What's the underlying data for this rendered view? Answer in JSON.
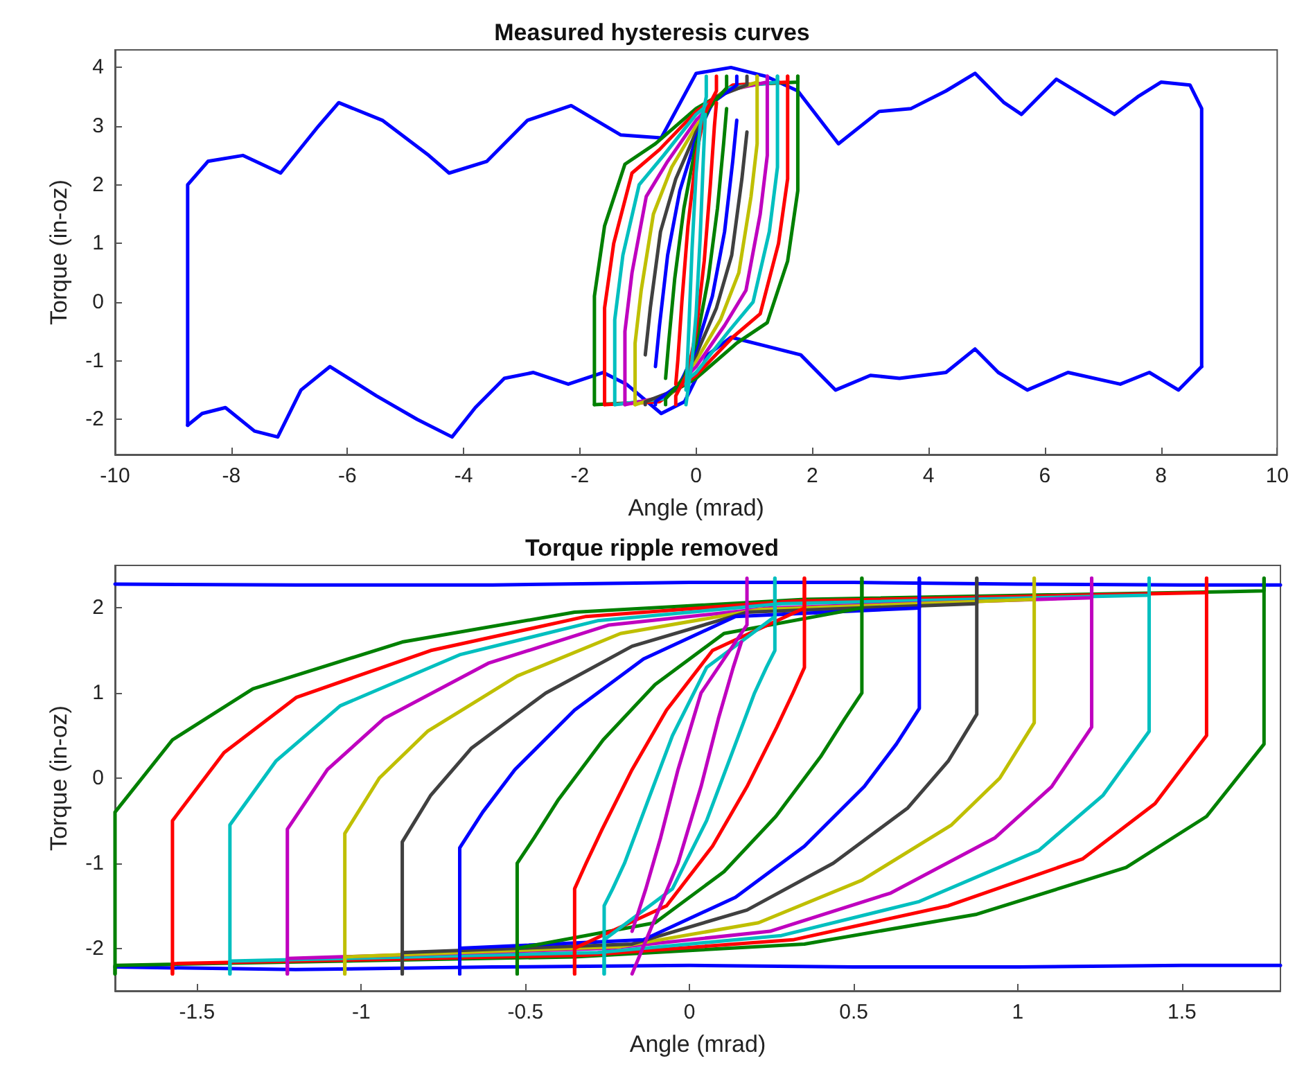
{
  "chart_data": [
    {
      "type": "line",
      "title": "Measured hysteresis curves",
      "xlabel": "Angle (mrad)",
      "ylabel": "Torque (in-oz)",
      "xlim": [
        -10,
        10
      ],
      "xticks": [
        -10,
        -8,
        -6,
        -4,
        -2,
        0,
        2,
        4,
        6,
        8,
        10
      ],
      "ylim": [
        -2.6,
        4.3
      ],
      "yticks": [
        -2,
        -1,
        0,
        1,
        2,
        3,
        4
      ],
      "marker": "none",
      "line_style": "solid",
      "series": [
        {
          "color": "#0000ff",
          "x": [
            -8.75,
            -8.75,
            -8.4,
            -7.8,
            -7.15,
            -6.5,
            -6.15,
            -5.4,
            -4.6,
            -4.25,
            -3.6,
            -2.9,
            -2.15,
            -1.3,
            -0.6,
            0,
            0.6,
            1.2,
            1.75,
            2.45,
            3.15,
            3.7,
            4.3,
            4.8,
            5.3,
            5.6,
            6.2,
            6.7,
            7.2,
            7.6,
            8.0,
            8.5,
            8.7,
            8.7
          ],
          "values": [
            -2.1,
            2.0,
            2.4,
            2.5,
            2.2,
            3.0,
            3.4,
            3.1,
            2.5,
            2.2,
            2.4,
            3.1,
            3.35,
            2.85,
            2.8,
            3.9,
            4.0,
            3.85,
            3.6,
            2.7,
            3.25,
            3.3,
            3.6,
            3.9,
            3.4,
            3.2,
            3.8,
            3.5,
            3.2,
            3.5,
            3.75,
            3.7,
            3.3,
            -1.1
          ]
        },
        {
          "color": "#0000ff",
          "x": [
            -8.75,
            -8.5,
            -8.1,
            -7.6,
            -7.2,
            -6.8,
            -6.3,
            -5.5,
            -4.8,
            -4.2,
            -3.8,
            -3.3,
            -2.8,
            -2.2,
            -1.6,
            -1.2,
            -0.6,
            -0.2,
            0.2,
            0.6,
            1.2,
            1.8,
            2.4,
            3.0,
            3.5,
            4.3,
            4.8,
            5.2,
            5.7,
            6.4,
            7.3,
            7.8,
            8.3,
            8.7
          ],
          "values": [
            -2.1,
            -1.9,
            -1.8,
            -2.2,
            -2.3,
            -1.5,
            -1.1,
            -1.6,
            -2.0,
            -2.3,
            -1.8,
            -1.3,
            -1.2,
            -1.4,
            -1.2,
            -1.4,
            -1.9,
            -1.7,
            -0.9,
            -0.6,
            -0.75,
            -0.9,
            -1.5,
            -1.25,
            -1.3,
            -1.2,
            -0.8,
            -1.2,
            -1.5,
            -1.2,
            -1.4,
            -1.2,
            -1.5,
            -1.1
          ]
        },
        {
          "color": "#008000",
          "x": [
            -1.75,
            -1.75,
            -1.575,
            -1.225,
            -0.7,
            0,
            0.7,
            1.75,
            1.75
          ],
          "values": [
            -1.75,
            0.1,
            1.3,
            2.35,
            2.7,
            3.3,
            3.7,
            3.75,
            3.85
          ]
        },
        {
          "color": "#008000",
          "x": [
            -1.75,
            -0.7,
            0,
            0.7,
            1.225,
            1.575,
            1.75,
            1.75
          ],
          "values": [
            -1.75,
            -1.7,
            -1.3,
            -0.7,
            -0.35,
            0.7,
            1.9,
            3.85
          ]
        },
        {
          "color": "#ff0000",
          "x": [
            -1.575,
            -1.575,
            -1.418,
            -1.103,
            -0.63,
            0,
            0.63,
            1.575,
            1.575
          ],
          "values": [
            -1.75,
            -0.1,
            1.0,
            2.2,
            2.6,
            3.25,
            3.7,
            3.75,
            3.85
          ]
        },
        {
          "color": "#ff0000",
          "x": [
            -1.575,
            -0.63,
            0,
            0.63,
            1.103,
            1.418,
            1.575,
            1.575
          ],
          "values": [
            -1.75,
            -1.7,
            -1.25,
            -0.6,
            -0.2,
            1.0,
            2.1,
            3.85
          ]
        },
        {
          "color": "#00bfbf",
          "x": [
            -1.4,
            -1.4,
            -1.26,
            -0.98,
            -0.56,
            0,
            0.56,
            1.4,
            1.4
          ],
          "values": [
            -1.75,
            -0.3,
            0.8,
            2.0,
            2.5,
            3.2,
            3.65,
            3.75,
            3.85
          ]
        },
        {
          "color": "#00bfbf",
          "x": [
            -1.4,
            -0.56,
            0,
            0.56,
            0.98,
            1.26,
            1.4,
            1.4
          ],
          "values": [
            -1.75,
            -1.65,
            -1.2,
            -0.5,
            0,
            1.2,
            2.3,
            3.85
          ]
        },
        {
          "color": "#bf00bf",
          "x": [
            -1.225,
            -1.225,
            -1.103,
            -0.858,
            -0.49,
            0,
            0.49,
            1.225,
            1.225
          ],
          "values": [
            -1.75,
            -0.5,
            0.5,
            1.8,
            2.4,
            3.1,
            3.6,
            3.75,
            3.85
          ]
        },
        {
          "color": "#bf00bf",
          "x": [
            -1.225,
            -0.49,
            0,
            0.49,
            0.858,
            1.103,
            1.225,
            1.225
          ],
          "values": [
            -1.75,
            -1.6,
            -1.1,
            -0.4,
            0.2,
            1.5,
            2.5,
            3.85
          ]
        },
        {
          "color": "#bfbf00",
          "x": [
            -1.05,
            -1.05,
            -0.945,
            -0.735,
            -0.42,
            0,
            0.42,
            1.05,
            1.05
          ],
          "values": [
            -1.75,
            -0.7,
            0.2,
            1.5,
            2.3,
            3.0,
            3.55,
            3.75,
            3.85
          ]
        },
        {
          "color": "#bfbf00",
          "x": [
            -1.05,
            -0.42,
            0,
            0.42,
            0.735,
            0.945,
            1.05,
            1.05
          ],
          "values": [
            -1.75,
            -1.55,
            -1.0,
            -0.3,
            0.5,
            1.8,
            2.7,
            3.85
          ]
        },
        {
          "color": "#404040",
          "x": [
            -0.875,
            -0.788,
            -0.613,
            -0.35,
            0,
            0.35,
            0.875,
            0.875
          ],
          "values": [
            -0.9,
            -0.1,
            1.2,
            2.1,
            2.9,
            3.5,
            3.7,
            3.85
          ]
        },
        {
          "color": "#404040",
          "x": [
            -0.875,
            -0.875,
            -0.35,
            0,
            0.35,
            0.613,
            0.788,
            0.875
          ],
          "values": [
            -1.75,
            -1.7,
            -1.5,
            -0.9,
            -0.1,
            0.8,
            2.1,
            2.9
          ]
        },
        {
          "color": "#0000ff",
          "x": [
            -0.7,
            -0.63,
            -0.49,
            -0.28,
            0,
            0.28,
            0.7,
            0.7
          ],
          "values": [
            -1.1,
            -0.4,
            0.8,
            1.9,
            2.8,
            3.4,
            3.7,
            3.85
          ]
        },
        {
          "color": "#0000ff",
          "x": [
            -0.7,
            -0.7,
            -0.28,
            0,
            0.28,
            0.49,
            0.63,
            0.7
          ],
          "values": [
            -1.75,
            -1.7,
            -1.4,
            -0.8,
            0.1,
            1.2,
            2.4,
            3.1
          ]
        },
        {
          "color": "#008000",
          "x": [
            -0.525,
            -0.473,
            -0.368,
            -0.21,
            0,
            0.21,
            0.525,
            0.525
          ],
          "values": [
            -1.3,
            -0.7,
            0.4,
            1.6,
            2.7,
            3.3,
            3.65,
            3.85
          ]
        },
        {
          "color": "#008000",
          "x": [
            -0.525,
            -0.525,
            -0.21,
            0,
            0.21,
            0.368,
            0.473,
            0.525
          ],
          "values": [
            -1.75,
            -1.65,
            -1.3,
            -0.7,
            0.4,
            1.6,
            2.7,
            3.3
          ]
        },
        {
          "color": "#ff0000",
          "x": [
            -0.35,
            -0.315,
            -0.245,
            -0.14,
            0,
            0.14,
            0.35,
            0.35
          ],
          "values": [
            -1.4,
            -1.0,
            0.0,
            1.3,
            2.5,
            3.2,
            3.6,
            3.85
          ]
        },
        {
          "color": "#ff0000",
          "x": [
            -0.35,
            -0.35,
            -0.14,
            0,
            0.14,
            0.245,
            0.315,
            0.35
          ],
          "values": [
            -1.75,
            -1.6,
            -1.2,
            -0.5,
            0.7,
            2.0,
            3.0,
            3.4
          ]
        },
        {
          "color": "#00bfbf",
          "x": [
            -0.175,
            -0.158,
            -0.123,
            -0.07,
            0,
            0.07,
            0.175,
            0.175
          ],
          "values": [
            -1.5,
            -1.2,
            -0.4,
            0.9,
            2.2,
            3.0,
            3.5,
            3.85
          ]
        },
        {
          "color": "#00bfbf",
          "x": [
            -0.175,
            -0.07,
            0,
            0.07,
            0.123,
            0.158
          ],
          "values": [
            -1.75,
            -1.0,
            -0.2,
            1.1,
            2.4,
            3.2
          ]
        }
      ]
    },
    {
      "type": "line",
      "title": "Torque ripple removed",
      "xlabel": "Angle (mrad)",
      "ylabel": "Torque (in-oz)",
      "xlim": [
        -1.75,
        1.8
      ],
      "xticks": [
        -1.5,
        -1,
        -0.5,
        0,
        0.5,
        1,
        1.5
      ],
      "ylim": [
        -2.5,
        2.5
      ],
      "yticks": [
        -2,
        -1,
        0,
        1,
        2
      ],
      "marker": "none",
      "line_style": "solid",
      "series": [
        {
          "color": "#0000ff",
          "x": [
            -1.75,
            -1.2,
            -0.6,
            0,
            0.5,
            1.0,
            1.5,
            1.8
          ],
          "values": [
            2.28,
            2.27,
            2.27,
            2.3,
            2.3,
            2.28,
            2.27,
            2.27
          ]
        },
        {
          "color": "#0000ff",
          "x": [
            -1.75,
            -1.2,
            -0.6,
            0,
            0.5,
            1.0,
            1.5,
            1.8
          ],
          "values": [
            -2.22,
            -2.25,
            -2.22,
            -2.2,
            -2.22,
            -2.22,
            -2.2,
            -2.2
          ]
        },
        {
          "color": "#008000",
          "x": [
            -1.75,
            -1.75,
            -1.575,
            -1.33,
            -0.875,
            -0.35,
            0.35,
            1.75,
            1.75
          ],
          "values": [
            -2.3,
            -0.4,
            0.45,
            1.05,
            1.6,
            1.95,
            2.1,
            2.2,
            2.35
          ]
        },
        {
          "color": "#008000",
          "x": [
            -1.75,
            -1.75,
            -0.35,
            0.35,
            0.875,
            1.33,
            1.575,
            1.75,
            1.75
          ],
          "values": [
            -2.3,
            -2.2,
            -2.1,
            -1.95,
            -1.6,
            -1.05,
            -0.45,
            0.4,
            2.35
          ]
        },
        {
          "color": "#ff0000",
          "x": [
            -1.575,
            -1.575,
            -1.418,
            -1.197,
            -0.788,
            -0.315,
            0.315,
            1.575,
            1.575
          ],
          "values": [
            -2.3,
            -0.5,
            0.3,
            0.95,
            1.5,
            1.9,
            2.08,
            2.18,
            2.35
          ]
        },
        {
          "color": "#ff0000",
          "x": [
            -1.575,
            -1.575,
            -0.315,
            0.315,
            0.788,
            1.197,
            1.418,
            1.575,
            1.575
          ],
          "values": [
            -2.3,
            -2.18,
            -2.08,
            -1.9,
            -1.5,
            -0.95,
            -0.3,
            0.5,
            2.35
          ]
        },
        {
          "color": "#00bfbf",
          "x": [
            -1.4,
            -1.4,
            -1.26,
            -1.064,
            -0.7,
            -0.28,
            0.28,
            1.4,
            1.4
          ],
          "values": [
            -2.3,
            -0.55,
            0.2,
            0.85,
            1.45,
            1.85,
            2.05,
            2.15,
            2.35
          ]
        },
        {
          "color": "#00bfbf",
          "x": [
            -1.4,
            -1.4,
            -0.28,
            0.28,
            0.7,
            1.064,
            1.26,
            1.4,
            1.4
          ],
          "values": [
            -2.3,
            -2.15,
            -2.05,
            -1.85,
            -1.45,
            -0.85,
            -0.2,
            0.55,
            2.35
          ]
        },
        {
          "color": "#bf00bf",
          "x": [
            -1.225,
            -1.225,
            -1.103,
            -0.931,
            -0.613,
            -0.245,
            0.245,
            1.225,
            1.225
          ],
          "values": [
            -2.3,
            -0.6,
            0.1,
            0.7,
            1.35,
            1.8,
            2.0,
            2.12,
            2.35
          ]
        },
        {
          "color": "#bf00bf",
          "x": [
            -1.225,
            -1.225,
            -0.245,
            0.245,
            0.613,
            0.931,
            1.103,
            1.225,
            1.225
          ],
          "values": [
            -2.3,
            -2.12,
            -2.0,
            -1.8,
            -1.35,
            -0.7,
            -0.1,
            0.6,
            2.35
          ]
        },
        {
          "color": "#bfbf00",
          "x": [
            -1.05,
            -1.05,
            -0.945,
            -0.798,
            -0.525,
            -0.21,
            0.21,
            1.05,
            1.05
          ],
          "values": [
            -2.3,
            -0.65,
            0,
            0.55,
            1.2,
            1.7,
            1.98,
            2.1,
            2.35
          ]
        },
        {
          "color": "#bfbf00",
          "x": [
            -1.05,
            -1.05,
            -0.21,
            0.21,
            0.525,
            0.798,
            0.945,
            1.05,
            1.05
          ],
          "values": [
            -2.3,
            -2.1,
            -1.98,
            -1.7,
            -1.2,
            -0.55,
            0,
            0.65,
            2.35
          ]
        },
        {
          "color": "#404040",
          "x": [
            -0.875,
            -0.875,
            -0.788,
            -0.665,
            -0.438,
            -0.175,
            0.175,
            0.875,
            0.875
          ],
          "values": [
            -2.3,
            -0.75,
            -0.2,
            0.35,
            1.0,
            1.55,
            1.95,
            2.05,
            2.35
          ]
        },
        {
          "color": "#404040",
          "x": [
            -0.875,
            -0.875,
            -0.175,
            0.175,
            0.438,
            0.665,
            0.788,
            0.875,
            0.875
          ],
          "values": [
            -2.3,
            -2.05,
            -1.95,
            -1.55,
            -1.0,
            -0.35,
            0.2,
            0.75,
            2.35
          ]
        },
        {
          "color": "#0000ff",
          "x": [
            -0.7,
            -0.7,
            -0.63,
            -0.532,
            -0.35,
            -0.14,
            0.14,
            0.7,
            0.7
          ],
          "values": [
            -2.3,
            -0.82,
            -0.4,
            0.1,
            0.8,
            1.4,
            1.9,
            2.0,
            2.35
          ]
        },
        {
          "color": "#0000ff",
          "x": [
            -0.7,
            -0.7,
            -0.14,
            0.14,
            0.35,
            0.532,
            0.63,
            0.7,
            0.7
          ],
          "values": [
            -2.3,
            -2.0,
            -1.9,
            -1.4,
            -0.8,
            -0.1,
            0.4,
            0.82,
            2.35
          ]
        },
        {
          "color": "#008000",
          "x": [
            -0.525,
            -0.525,
            -0.473,
            -0.399,
            -0.263,
            -0.105,
            0.105,
            0.525,
            0.525
          ],
          "values": [
            -2.3,
            -1.0,
            -0.7,
            -0.25,
            0.45,
            1.1,
            1.7,
            2.0,
            2.35
          ]
        },
        {
          "color": "#008000",
          "x": [
            -0.525,
            -0.525,
            -0.105,
            0.105,
            0.263,
            0.399,
            0.473,
            0.525,
            0.525
          ],
          "values": [
            -2.3,
            -2.0,
            -1.7,
            -1.1,
            -0.45,
            0.25,
            0.7,
            1.0,
            2.35
          ]
        },
        {
          "color": "#ff0000",
          "x": [
            -0.35,
            -0.35,
            -0.315,
            -0.266,
            -0.175,
            -0.07,
            0.07,
            0.35,
            0.35
          ],
          "values": [
            -2.3,
            -1.3,
            -1.0,
            -0.6,
            0.1,
            0.8,
            1.5,
            2.0,
            2.35
          ]
        },
        {
          "color": "#ff0000",
          "x": [
            -0.35,
            -0.35,
            -0.07,
            0.07,
            0.175,
            0.266,
            0.315,
            0.35,
            0.35
          ],
          "values": [
            -2.3,
            -2.0,
            -1.5,
            -0.8,
            -0.1,
            0.6,
            1.0,
            1.3,
            2.35
          ]
        },
        {
          "color": "#00bfbf",
          "x": [
            -0.26,
            -0.26,
            -0.234,
            -0.198,
            -0.13,
            -0.052,
            0.052,
            0.26,
            0.26
          ],
          "values": [
            -2.3,
            -1.5,
            -1.3,
            -1.0,
            -0.3,
            0.5,
            1.3,
            1.9,
            2.35
          ]
        },
        {
          "color": "#00bfbf",
          "x": [
            -0.26,
            -0.26,
            -0.052,
            0.052,
            0.13,
            0.198,
            0.234,
            0.26,
            0.26
          ],
          "values": [
            -2.3,
            -1.9,
            -1.3,
            -0.5,
            0.3,
            1.0,
            1.3,
            1.5,
            2.35
          ]
        },
        {
          "color": "#bf00bf",
          "x": [
            -0.175,
            -0.158,
            -0.133,
            -0.088,
            -0.035,
            0.035,
            0.175,
            0.175
          ],
          "values": [
            -1.8,
            -1.6,
            -1.3,
            -0.7,
            0.1,
            1.0,
            1.8,
            2.35
          ]
        },
        {
          "color": "#bf00bf",
          "x": [
            -0.175,
            -0.035,
            0.035,
            0.088,
            0.133,
            0.158
          ],
          "values": [
            -2.3,
            -1.0,
            -0.1,
            0.7,
            1.3,
            1.6
          ]
        }
      ]
    }
  ]
}
